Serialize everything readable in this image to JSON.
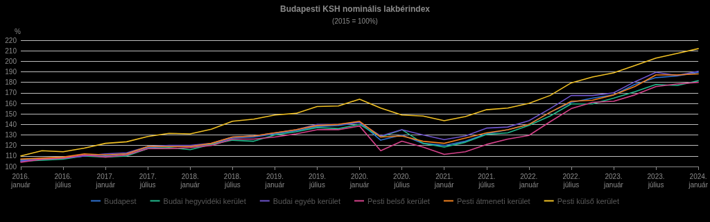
{
  "chart_data": {
    "type": "line",
    "title": "Budapesti KSH nominális lakbérindex",
    "subtitle": "(2015 = 100%)",
    "ylabel": "%",
    "categories": [
      "2016. január",
      null,
      "2016. július",
      null,
      "2017. január",
      null,
      "2017. július",
      null,
      "2018. január",
      null,
      "2018. július",
      null,
      "2019. január",
      null,
      "2019. július",
      null,
      "2020. január",
      null,
      "2020. július",
      null,
      "2021. január",
      null,
      "2021. július",
      null,
      "2022. január",
      null,
      "2022. július",
      null,
      "2023. január",
      null,
      "2023. július",
      null,
      "2024. január"
    ],
    "series": [
      {
        "name": "Budapest",
        "color": "#2f72d0",
        "values": [
          106,
          107,
          108,
          110,
          110,
          112,
          118,
          119,
          119,
          121,
          127,
          128,
          131,
          134,
          138,
          139,
          142,
          125,
          130,
          122,
          120,
          124,
          131,
          135,
          140,
          151.5,
          161,
          165,
          168,
          178,
          184.5,
          186,
          189.5
        ]
      },
      {
        "name": "Budai hegyvidéki kerület",
        "color": "#22b98c",
        "values": [
          105,
          106,
          107,
          110,
          109,
          110,
          117,
          118,
          116,
          121,
          125,
          124,
          130,
          133,
          137,
          136,
          140,
          128,
          135,
          122,
          118.5,
          123,
          130.5,
          132,
          139,
          148,
          159.5,
          159.5,
          165,
          171,
          178,
          177,
          181.5
        ]
      },
      {
        "name": "Budai egyéb kerület",
        "color": "#6c52c9",
        "values": [
          105,
          107,
          108,
          110,
          112,
          113,
          119,
          120,
          120,
          122,
          128,
          129,
          132,
          135,
          140,
          140,
          142,
          129,
          135,
          130,
          125.5,
          129,
          136.5,
          137.5,
          143.5,
          155,
          167.5,
          167.5,
          170,
          180.5,
          189.5,
          186.5,
          190.5
        ]
      },
      {
        "name": "Pesti belső kerület",
        "color": "#d5428a",
        "values": [
          104,
          107,
          108,
          111,
          109,
          111,
          117,
          117,
          118,
          120,
          126,
          126,
          128,
          131,
          135,
          135,
          138.5,
          115,
          124,
          118.5,
          111.5,
          114,
          121,
          126,
          129.5,
          142.5,
          155,
          161,
          162,
          168,
          176,
          178.5,
          180
        ]
      },
      {
        "name": "Pesti átmeneti kerület",
        "color": "#f0801f",
        "values": [
          107,
          108,
          109,
          112,
          111,
          112,
          119,
          119,
          119,
          122,
          128,
          129,
          132,
          135,
          139,
          140,
          143,
          128,
          129,
          124,
          122,
          127,
          132,
          135,
          140,
          151.5,
          162,
          163,
          168,
          176,
          187,
          187,
          188
        ]
      },
      {
        "name": "Pesti külső kerület",
        "color": "#f0c024",
        "values": [
          110,
          115,
          114,
          117.5,
          122,
          123.5,
          128.5,
          131.5,
          131,
          135.5,
          143,
          145,
          149,
          150.5,
          157,
          157.5,
          164,
          155.5,
          149,
          148,
          143.5,
          147.5,
          154,
          155.5,
          160,
          167.5,
          179.5,
          185,
          189,
          196,
          203,
          207.5,
          212
        ]
      }
    ],
    "ylim": [
      100,
      220
    ],
    "yticks": [
      100,
      110,
      120,
      130,
      140,
      150,
      160,
      170,
      180,
      190,
      200,
      210,
      220
    ],
    "grid": "y",
    "legend": "bottom",
    "marker": "none",
    "line_style": "solid"
  }
}
